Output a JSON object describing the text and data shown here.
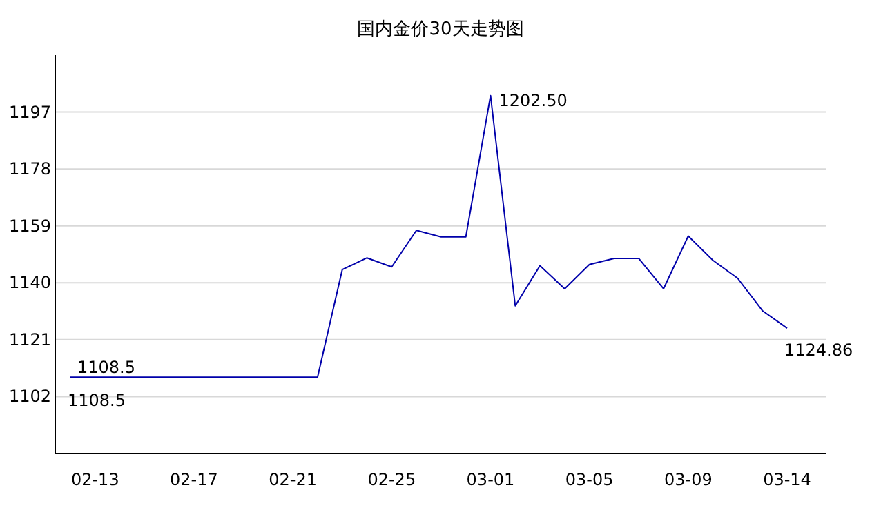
{
  "chart_data": {
    "type": "line",
    "title": "国内金价30天走势图",
    "categories": [
      null,
      "02-13",
      null,
      null,
      null,
      "02-17",
      null,
      null,
      null,
      "02-21",
      null,
      null,
      null,
      "02-25",
      null,
      null,
      null,
      "03-01",
      null,
      null,
      null,
      "03-05",
      null,
      null,
      null,
      "03-09",
      null,
      null,
      null,
      "03-14"
    ],
    "series": [
      {
        "color": "#0000aa",
        "values": [
          1108.5,
          1108.5,
          1108.5,
          1108.5,
          1108.5,
          1108.5,
          1108.5,
          1108.5,
          1108.5,
          1108.5,
          1108.5,
          1144.4,
          1148.3,
          1145.3,
          1157.5,
          1155.3,
          1155.3,
          1202.5,
          1132.3,
          1145.7,
          1138,
          1146.1,
          1148.1,
          1148.1,
          1138,
          1155.6,
          1147.5,
          1141.5,
          1130.7,
          1124.86
        ],
        "value_labels": [
          "1108.5",
          null,
          null,
          null,
          null,
          null,
          null,
          null,
          null,
          null,
          null,
          null,
          null,
          null,
          null,
          null,
          null,
          "1202.50",
          null,
          null,
          null,
          null,
          null,
          null,
          null,
          null,
          null,
          null,
          null,
          "1124.86"
        ]
      }
    ],
    "annotations": [
      "1108.5"
    ],
    "ylim": [
      1083,
      1216
    ],
    "yticks": [
      1102,
      1121,
      1140,
      1159,
      1178,
      1197
    ],
    "grid": "y",
    "marker": "none",
    "line_style": "solid"
  }
}
